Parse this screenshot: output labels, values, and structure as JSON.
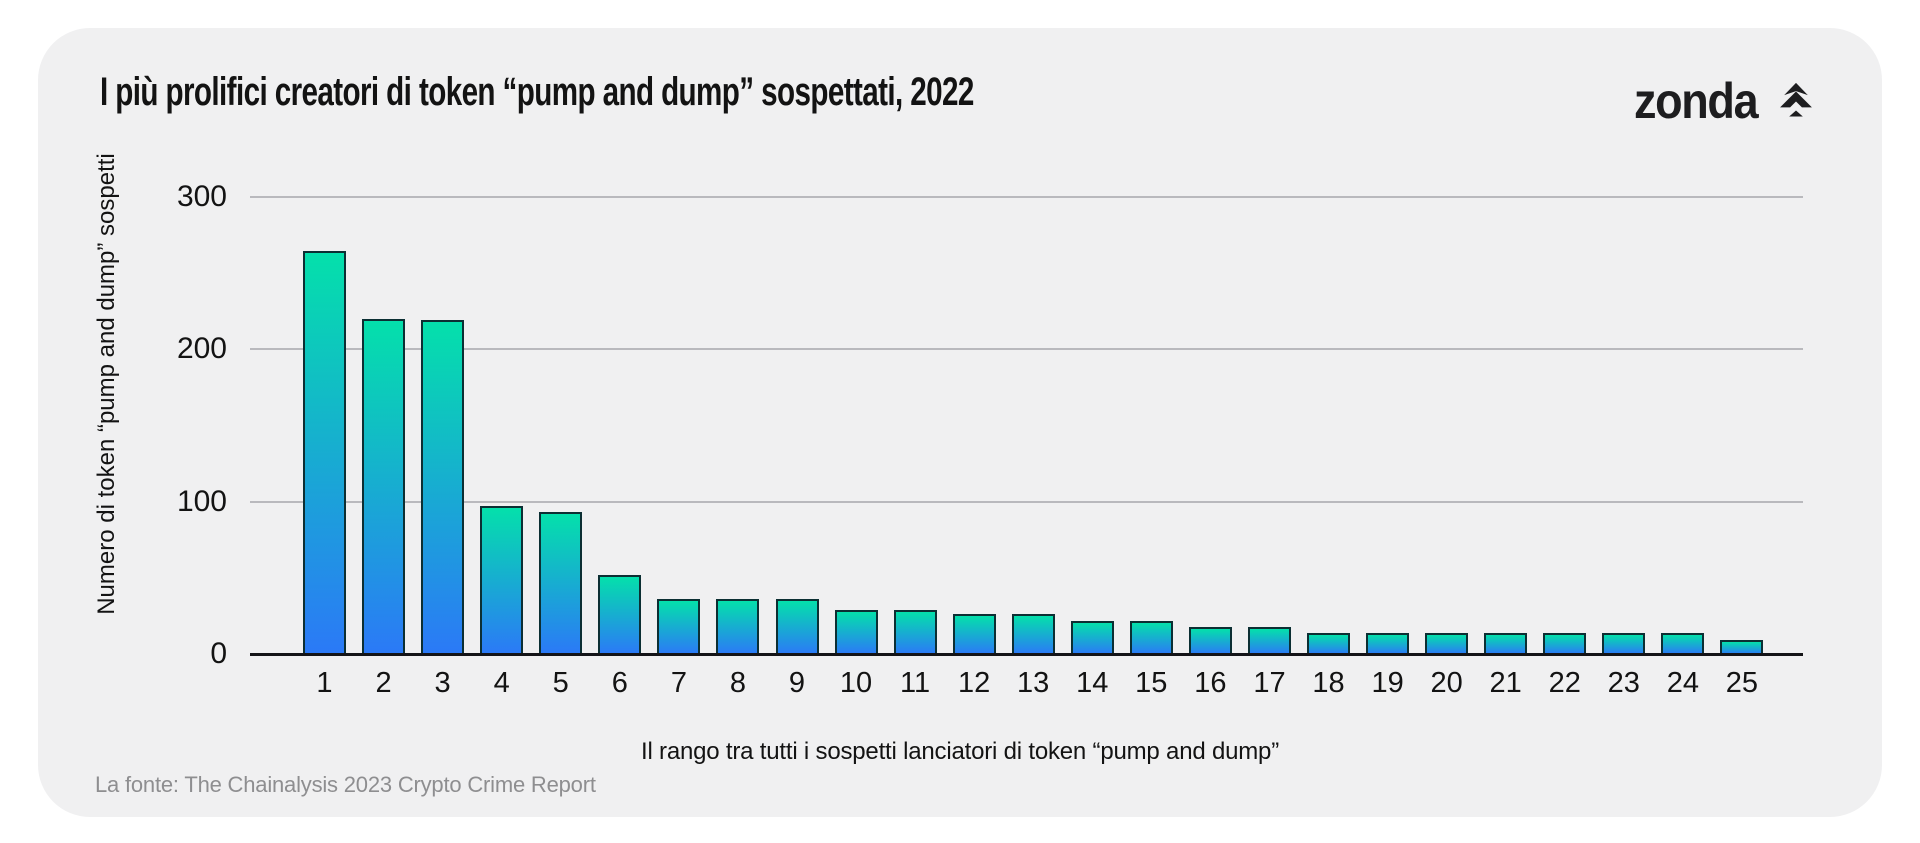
{
  "page": {
    "background": "#ffffff",
    "card_background": "#f0f0f1"
  },
  "header": {
    "title": "I più prolifici creatori di token “pump and dump” sospettati, 2022",
    "logo_text": "zonda",
    "logo_icon": "spruce-tree-arrow-icon",
    "logo_color": "#1d1d1f"
  },
  "chart_data": {
    "type": "bar",
    "title": "I più prolifici creatori di token “pump and dump” sospettati, 2022",
    "categories": [
      "1",
      "2",
      "3",
      "4",
      "5",
      "6",
      "7",
      "8",
      "9",
      "10",
      "11",
      "12",
      "13",
      "14",
      "15",
      "16",
      "17",
      "18",
      "19",
      "20",
      "21",
      "22",
      "23",
      "24",
      "25"
    ],
    "values": [
      264,
      220,
      219,
      97,
      93,
      52,
      36,
      36,
      36,
      29,
      29,
      26,
      26,
      22,
      22,
      18,
      18,
      14,
      14,
      14,
      14,
      14,
      14,
      14,
      9
    ],
    "xlabel": "Il rango tra tutti i sospetti lanciatori di token “pump and dump”",
    "ylabel": "Numero di token “pump and dump” sospetti",
    "ylim": [
      0,
      300
    ],
    "yticks": [
      0,
      100,
      200,
      300
    ],
    "grid": true,
    "legend": "none",
    "colors": {
      "bar_gradient_top": "#04e0ab",
      "bar_gradient_bottom": "#2b79f7",
      "bar_border": "#0c2f33",
      "gridline": "#b9b9bd",
      "axis_line": "#141418",
      "tick_text": "#131313"
    }
  },
  "footer": {
    "source": "La fonte: The Chainalysis 2023 Crypto Crime Report"
  }
}
